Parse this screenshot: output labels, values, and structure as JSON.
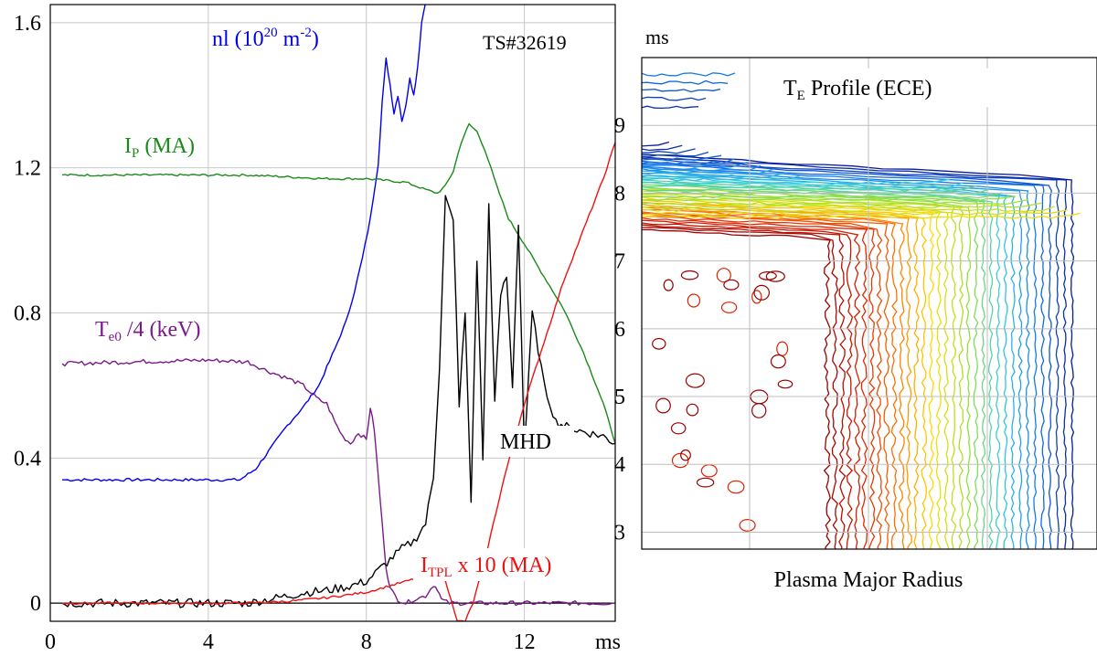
{
  "chart_data": [
    {
      "type": "line",
      "title": "TS#32619",
      "x_unit": "ms",
      "xlim": [
        0,
        14.3
      ],
      "ylim": [
        -0.05,
        1.65
      ],
      "x_ticks": [
        0,
        4,
        8,
        12
      ],
      "y_ticks": [
        0,
        0.4,
        0.8,
        1.2,
        1.6
      ],
      "y_tick_labels": [
        "0",
        "0.4",
        "0.8",
        "1.2",
        "1.6"
      ],
      "grid": true,
      "series": [
        {
          "name": "nl (10^20 m^-2)",
          "label": {
            "base": "nl (10",
            "sup1": "20",
            "mid": " m",
            "sup2": "-2",
            "end": ")"
          },
          "color": "#0000ee",
          "x": [
            0.3,
            1,
            2,
            3,
            4,
            4.8,
            5.2,
            5.6,
            6.0,
            6.4,
            6.8,
            7.2,
            7.5,
            7.7,
            7.9,
            8.1,
            8.3,
            8.4,
            8.5,
            8.6,
            8.7,
            8.8,
            8.9,
            9.0,
            9.1,
            9.2,
            9.3,
            9.4,
            9.5,
            9.7
          ],
          "y": [
            0.34,
            0.34,
            0.34,
            0.34,
            0.34,
            0.34,
            0.37,
            0.43,
            0.49,
            0.54,
            0.6,
            0.7,
            0.78,
            0.86,
            0.95,
            1.06,
            1.21,
            1.38,
            1.5,
            1.43,
            1.35,
            1.4,
            1.33,
            1.37,
            1.45,
            1.4,
            1.48,
            1.6,
            1.66,
            1.66
          ]
        },
        {
          "name": "IP (MA)",
          "label": {
            "base": "I",
            "sub": "P",
            "end": " (MA)"
          },
          "color": "#1a8a1a",
          "x": [
            0.3,
            2,
            4,
            5,
            6,
            7,
            8,
            9,
            9.5,
            9.8,
            10.0,
            10.2,
            10.4,
            10.6,
            10.8,
            11.0,
            11.3,
            11.6,
            12,
            12.5,
            13,
            13.5,
            14,
            14.3
          ],
          "y": [
            1.18,
            1.18,
            1.18,
            1.18,
            1.175,
            1.17,
            1.17,
            1.16,
            1.14,
            1.13,
            1.15,
            1.19,
            1.27,
            1.32,
            1.3,
            1.25,
            1.15,
            1.06,
            0.99,
            0.9,
            0.81,
            0.69,
            0.55,
            0.44
          ]
        },
        {
          "name": "Te0 /4 (keV)",
          "label": {
            "base": "T",
            "sub": "e0",
            "end": " /4 (keV)"
          },
          "color": "#7a1a8a",
          "x": [
            0.3,
            2,
            4,
            5,
            5.5,
            6,
            6.4,
            6.8,
            7.0,
            7.2,
            7.4,
            7.6,
            7.8,
            8.0,
            8.1,
            8.2,
            8.3,
            8.4,
            8.5,
            8.6,
            8.8,
            9.0,
            9.2,
            9.5,
            9.7,
            9.8,
            9.9,
            10.1,
            11,
            12,
            14.3
          ],
          "y": [
            0.66,
            0.665,
            0.67,
            0.665,
            0.64,
            0.62,
            0.6,
            0.56,
            0.55,
            0.5,
            0.46,
            0.44,
            0.47,
            0.45,
            0.54,
            0.48,
            0.35,
            0.22,
            0.1,
            0.04,
            0.01,
            0.0,
            0.01,
            0.02,
            0.05,
            0.04,
            0.01,
            0.0,
            0.0,
            0.0,
            0.0
          ]
        },
        {
          "name": "MHD",
          "label": {
            "base": "MHD"
          },
          "color": "#000000",
          "x": [
            0.3,
            4,
            5,
            5.5,
            6,
            6.5,
            7,
            7.5,
            8,
            8.3,
            8.6,
            8.9,
            9.2,
            9.5,
            9.7,
            9.85,
            10.0,
            10.2,
            10.35,
            10.5,
            10.65,
            10.8,
            10.95,
            11.1,
            11.25,
            11.4,
            11.55,
            11.7,
            11.85,
            12.0,
            12.2,
            12.5,
            12.8,
            13.2,
            13.6,
            14.0,
            14.3
          ],
          "y": [
            0.0,
            0.0,
            0.0,
            0.01,
            0.02,
            0.03,
            0.035,
            0.045,
            0.06,
            0.09,
            0.12,
            0.15,
            0.17,
            0.22,
            0.35,
            0.65,
            1.12,
            1.05,
            0.55,
            0.8,
            0.28,
            0.95,
            0.4,
            1.1,
            0.55,
            0.85,
            0.9,
            0.6,
            1.05,
            0.42,
            0.8,
            0.6,
            0.5,
            0.48,
            0.47,
            0.46,
            0.44
          ]
        },
        {
          "name": "ITPL x 10 (MA)",
          "label": {
            "base": "I",
            "sub": "TPL",
            "end": " x 10 (MA)"
          },
          "color": "#ee1111",
          "x": [
            0.3,
            4,
            5,
            6,
            7,
            8,
            8.5,
            9,
            9.5,
            9.8,
            10.0,
            10.15,
            10.3,
            10.5,
            10.7,
            11.0,
            11.5,
            12,
            12.5,
            13,
            13.5,
            14.0,
            14.3
          ],
          "y": [
            0.0,
            0.0,
            0.0,
            0.005,
            0.015,
            0.03,
            0.045,
            0.06,
            0.075,
            0.08,
            0.06,
            0.01,
            -0.05,
            -0.05,
            0.0,
            0.12,
            0.35,
            0.55,
            0.72,
            0.89,
            1.03,
            1.17,
            1.27
          ]
        }
      ],
      "annotations": [
        "MHD"
      ]
    },
    {
      "type": "contour",
      "title_parts": {
        "base": "T",
        "sub": "E",
        "end": " Profile (ECE)"
      },
      "xlabel": "Plasma Major Radius",
      "ylabel": "ms",
      "ylim": [
        2.75,
        10.0
      ],
      "y_ticks": [
        3,
        4,
        5,
        6,
        7,
        8,
        9
      ],
      "grid": true,
      "colormap": [
        "#990000",
        "#dd2200",
        "#ff7700",
        "#ffdd00",
        "#99e033",
        "#33ccdd",
        "#1177ee",
        "#0a1a99"
      ]
    }
  ]
}
